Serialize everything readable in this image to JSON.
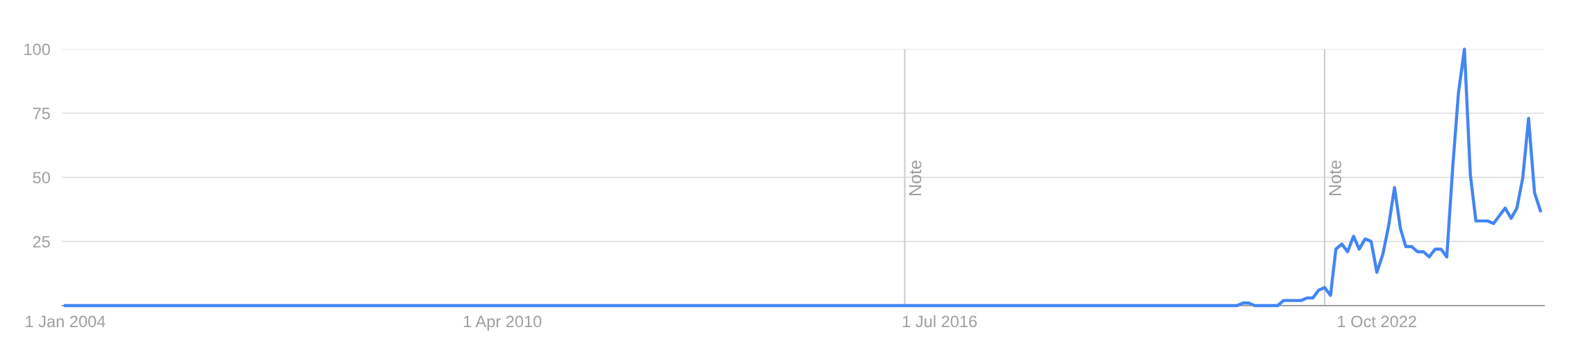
{
  "chart_data": {
    "type": "line",
    "x": [
      "2004-01",
      "2020-09",
      "2020-10",
      "2020-11",
      "2020-12",
      "2021-01",
      "2021-02",
      "2021-03",
      "2021-04",
      "2021-05",
      "2021-06",
      "2021-07",
      "2021-08",
      "2021-09",
      "2021-10",
      "2021-11",
      "2021-12",
      "2022-01",
      "2022-02",
      "2022-03",
      "2022-04",
      "2022-05",
      "2022-06",
      "2022-07",
      "2022-08",
      "2022-09",
      "2022-10",
      "2022-11",
      "2022-12",
      "2023-01",
      "2023-02",
      "2023-03",
      "2023-04",
      "2023-05",
      "2023-06",
      "2023-07",
      "2023-08",
      "2023-09",
      "2023-10",
      "2023-11",
      "2023-12",
      "2024-01",
      "2024-02",
      "2024-03",
      "2024-04",
      "2024-05",
      "2024-06",
      "2024-07",
      "2024-08",
      "2024-09",
      "2024-10",
      "2024-11",
      "2024-12",
      "2025-01",
      "2025-02"
    ],
    "series": [
      {
        "color": "#4285f4",
        "values": [
          0,
          0,
          0,
          1,
          1,
          0,
          0,
          0,
          0,
          0,
          2,
          2,
          2,
          2,
          3,
          3,
          6,
          7,
          4,
          22,
          24,
          21,
          27,
          22,
          26,
          25,
          13,
          20,
          31,
          46,
          30,
          23,
          23,
          21,
          21,
          19,
          22,
          22,
          19,
          54,
          83,
          100,
          51,
          33,
          33,
          33,
          32,
          35,
          38,
          34,
          38,
          50,
          73,
          44,
          37
        ]
      }
    ],
    "xlim": [
      "2003-12-16",
      "2025-02-20"
    ],
    "xticks": [
      {
        "value": "2004-01-01",
        "label": "1 Jan 2004"
      },
      {
        "value": "2010-04-01",
        "label": "1 Apr 2010"
      },
      {
        "value": "2016-07-01",
        "label": "1 Jul 2016"
      },
      {
        "value": "2022-10-01",
        "label": "1 Oct 2022"
      }
    ],
    "ylim": [
      0,
      100
    ],
    "yticks": [
      25,
      50,
      75,
      100
    ],
    "grid": "y",
    "marker": "none",
    "line_style": "solid",
    "ref_lines": [
      {
        "axis": "x",
        "value": "2016-01-01",
        "label": "Note",
        "color": "#cccccc"
      },
      {
        "axis": "x",
        "value": "2022-01-01",
        "label": "Note",
        "color": "#cccccc"
      }
    ]
  }
}
